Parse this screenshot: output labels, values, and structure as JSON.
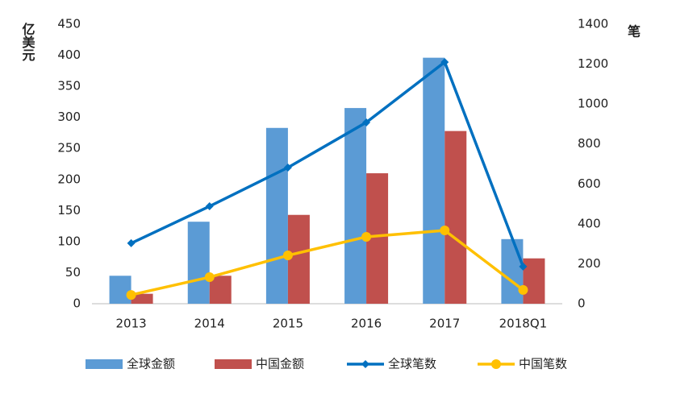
{
  "chart_data": {
    "type": "bar",
    "y_label": "亿美元",
    "y2_label": "笔",
    "categories": [
      "2013",
      "2014",
      "2015",
      "2016",
      "2017",
      "2018Q1"
    ],
    "series": [
      {
        "name": "全球金额",
        "color": "#5b9bd5",
        "values": [
          45,
          132,
          283,
          315,
          396,
          104
        ]
      },
      {
        "name": "中国金额",
        "color": "#c0504d",
        "values": [
          16,
          45,
          143,
          210,
          278,
          73
        ]
      },
      {
        "name": "全球笔数",
        "color": "#0070c0",
        "type": "line",
        "axis": "y2",
        "marker": "diamond",
        "values": [
          303,
          488,
          682,
          908,
          1210,
          186
        ]
      },
      {
        "name": "中国笔数",
        "color": "#ffc000",
        "type": "line",
        "axis": "y2",
        "marker": "circle",
        "values": [
          44,
          133,
          242,
          335,
          367,
          69
        ]
      }
    ],
    "ylim": [
      0,
      450
    ],
    "yticks": [
      0,
      50,
      100,
      150,
      200,
      250,
      300,
      350,
      400,
      450
    ],
    "y2lim": [
      0,
      1400
    ],
    "y2ticks": [
      0,
      200,
      400,
      600,
      800,
      1000,
      1200,
      1400
    ],
    "grid": false,
    "legend": "bottom"
  }
}
